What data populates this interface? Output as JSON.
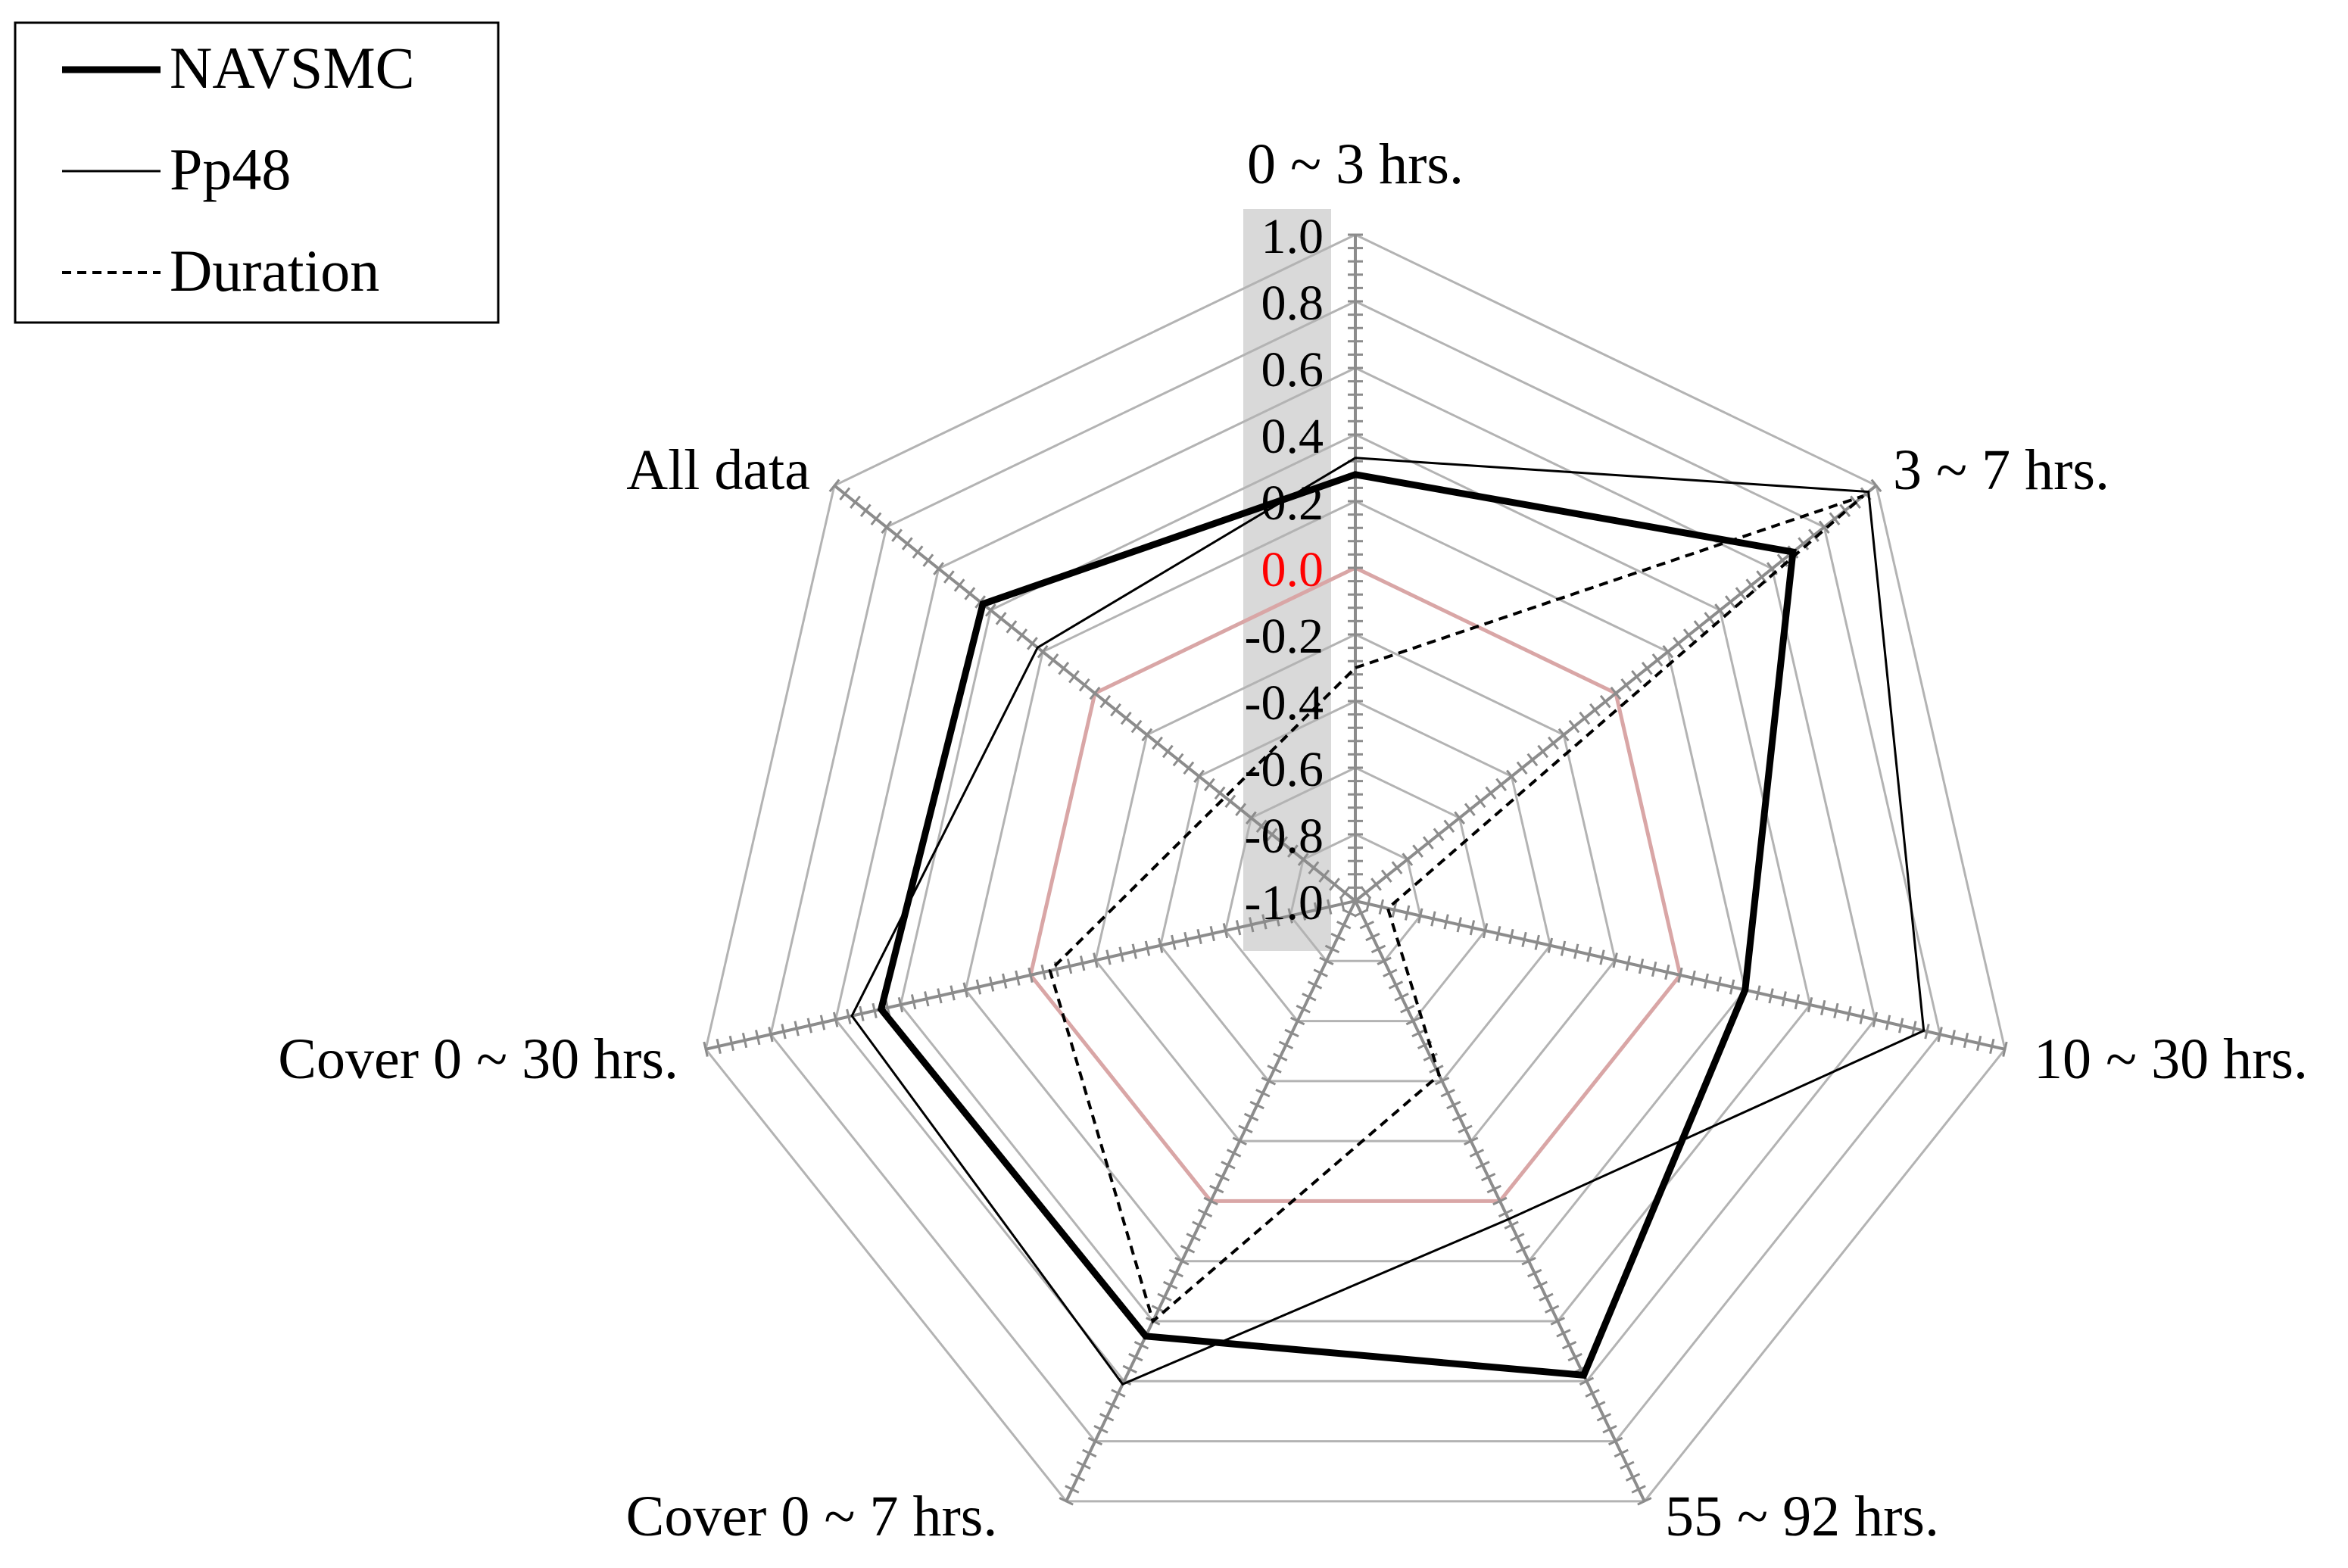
{
  "chart_data": {
    "type": "radar",
    "axes": [
      "0 ~ 3 hrs.",
      "3 ~ 7 hrs.",
      "10 ~ 30 hrs.",
      "55 ~ 92 hrs.",
      "Cover 0 ~ 7 hrs.",
      "Cover 0 ~ 30 hrs.",
      "All data"
    ],
    "rlim": [
      -1.0,
      1.0
    ],
    "ticks": [
      "1.0",
      "0.8",
      "0.6",
      "0.4",
      "0.2",
      "0.0",
      "-0.2",
      "-0.4",
      "-0.6",
      "-0.8",
      "-1.0"
    ],
    "zero_ring_color": "#d9a6a6",
    "zero_label_color": "#ff0000",
    "grid": true,
    "legend_position": "top-left",
    "series": [
      {
        "name": "NAVSMC",
        "style": "thick",
        "values": [
          0.28,
          0.68,
          0.2,
          0.58,
          0.45,
          0.46,
          0.43
        ]
      },
      {
        "name": "Pp48",
        "style": "thin",
        "values": [
          0.33,
          0.97,
          0.75,
          0.06,
          0.61,
          0.55,
          0.22
        ]
      },
      {
        "name": "Duration",
        "style": "dashed",
        "values": [
          -0.3,
          0.95,
          -0.9,
          -0.42,
          0.4,
          -0.06,
          -0.5
        ]
      }
    ]
  }
}
